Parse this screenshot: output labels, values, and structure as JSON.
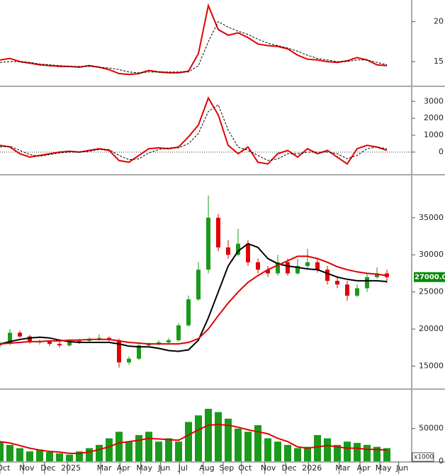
{
  "chart_data": [
    {
      "type": "line",
      "x": [
        0,
        2,
        4,
        6,
        8,
        10,
        12,
        14,
        16,
        18,
        20,
        22,
        24,
        26,
        28,
        30,
        32,
        34,
        36,
        38,
        40,
        42,
        44,
        46,
        48,
        50,
        52,
        54,
        56,
        58,
        60,
        62,
        64,
        66,
        68,
        70,
        72,
        74,
        76,
        78
      ],
      "series": [
        {
          "color": "#e00000",
          "dash": false,
          "values": [
            15.2,
            15.4,
            15.0,
            14.8,
            14.6,
            14.5,
            14.4,
            14.4,
            14.3,
            14.5,
            14.3,
            14.0,
            13.5,
            13.4,
            13.5,
            13.9,
            13.7,
            13.6,
            13.6,
            13.8,
            16.0,
            22.0,
            19.0,
            18.3,
            18.6,
            18.0,
            17.2,
            17.0,
            16.9,
            16.6,
            15.8,
            15.3,
            15.2,
            15.0,
            14.9,
            15.1,
            15.5,
            15.2,
            14.6,
            14.5
          ]
        },
        {
          "color": "#000000",
          "dash": true,
          "values": [
            14.9,
            15.0,
            15.0,
            14.9,
            14.7,
            14.6,
            14.5,
            14.4,
            14.4,
            14.4,
            14.3,
            14.2,
            14.0,
            13.7,
            13.6,
            13.7,
            13.7,
            13.7,
            13.7,
            13.7,
            14.5,
            17.5,
            20.0,
            19.3,
            18.8,
            18.4,
            17.8,
            17.3,
            17.0,
            16.7,
            16.3,
            15.8,
            15.4,
            15.2,
            15.0,
            15.0,
            15.2,
            15.2,
            14.9,
            14.6
          ]
        }
      ],
      "ylim": [
        12,
        22.7
      ],
      "yticks": [
        15,
        20
      ]
    },
    {
      "type": "line",
      "x": [
        0,
        2,
        4,
        6,
        8,
        10,
        12,
        14,
        16,
        18,
        20,
        22,
        24,
        26,
        28,
        30,
        32,
        34,
        36,
        38,
        40,
        42,
        44,
        46,
        48,
        50,
        52,
        54,
        56,
        58,
        60,
        62,
        64,
        66,
        68,
        70,
        72,
        74,
        76,
        78
      ],
      "series": [
        {
          "color": "#e00000",
          "dash": false,
          "values": [
            400,
            300,
            -100,
            -300,
            -200,
            -100,
            0,
            50,
            0,
            100,
            200,
            100,
            -500,
            -600,
            -200,
            200,
            250,
            200,
            300,
            900,
            1600,
            3200,
            2200,
            400,
            -100,
            300,
            -600,
            -700,
            -100,
            100,
            -300,
            200,
            -100,
            100,
            -300,
            -700,
            200,
            400,
            300,
            100
          ]
        },
        {
          "color": "#000000",
          "dash": true,
          "values": [
            300,
            350,
            100,
            -150,
            -250,
            -150,
            -50,
            0,
            0,
            50,
            150,
            150,
            -200,
            -450,
            -400,
            -50,
            150,
            250,
            250,
            500,
            1100,
            2400,
            2800,
            1300,
            300,
            100,
            -200,
            -500,
            -400,
            -100,
            -100,
            0,
            0,
            0,
            -100,
            -400,
            -200,
            200,
            300,
            200
          ]
        }
      ],
      "ylim": [
        -1300,
        3850
      ],
      "yticks": [
        0,
        1000,
        2000,
        3000
      ],
      "zero_line": true
    },
    {
      "type": "candlestick",
      "x": [
        0,
        2,
        4,
        6,
        8,
        10,
        12,
        14,
        16,
        18,
        20,
        22,
        24,
        26,
        28,
        30,
        32,
        34,
        36,
        38,
        40,
        42,
        44,
        46,
        48,
        50,
        52,
        54,
        56,
        58,
        60,
        62,
        64,
        66,
        68,
        70,
        72,
        74,
        76,
        78
      ],
      "open": [
        17800,
        18000,
        19500,
        19000,
        18200,
        18300,
        18000,
        17800,
        18200,
        18400,
        18600,
        18800,
        18500,
        15500,
        16000,
        17800,
        18000,
        18200,
        18500,
        20500,
        24000,
        28000,
        35000,
        31000,
        30000,
        31500,
        29000,
        28000,
        27500,
        29000,
        27500,
        28500,
        29000,
        28000,
        26500,
        26000,
        24500,
        25500,
        27000,
        27500
      ],
      "high": [
        18300,
        20000,
        19800,
        19200,
        18600,
        18500,
        18300,
        18400,
        18700,
        18900,
        19300,
        19000,
        18700,
        16300,
        18000,
        18200,
        18500,
        18800,
        20800,
        24500,
        29000,
        38000,
        35500,
        32000,
        33500,
        32000,
        29500,
        28500,
        30000,
        29500,
        29500,
        30800,
        29500,
        28500,
        27000,
        26500,
        26000,
        27500,
        28300,
        28000
      ],
      "low": [
        17500,
        17800,
        18800,
        18000,
        17900,
        17700,
        17500,
        17600,
        18000,
        18200,
        18400,
        18300,
        14800,
        15200,
        15800,
        17600,
        17800,
        18000,
        18300,
        20300,
        23800,
        27500,
        30500,
        29500,
        29800,
        28500,
        27500,
        27000,
        27200,
        27200,
        27300,
        28200,
        27600,
        26000,
        25500,
        23800,
        24300,
        25000,
        26800,
        26200
      ],
      "close": [
        18000,
        19500,
        19000,
        18200,
        18300,
        18000,
        17800,
        18200,
        18400,
        18600,
        18800,
        18500,
        15500,
        16000,
        17800,
        18000,
        18200,
        18500,
        20500,
        24000,
        28000,
        35000,
        31000,
        30000,
        31500,
        29000,
        28000,
        27500,
        29000,
        27500,
        28500,
        29000,
        28000,
        26500,
        26000,
        24500,
        25500,
        27000,
        27500,
        27000
      ],
      "up_color": "#1a9a1a",
      "down_color": "#e00000",
      "series": [
        {
          "color": "#000000",
          "values": [
            18000,
            18300,
            18600,
            18800,
            18900,
            18800,
            18500,
            18300,
            18200,
            18200,
            18200,
            18200,
            18000,
            17700,
            17600,
            17600,
            17400,
            17100,
            17000,
            17200,
            18500,
            21500,
            25000,
            28500,
            30500,
            31500,
            31000,
            29500,
            28800,
            28500,
            28300,
            28100,
            28000,
            27500,
            27000,
            26700,
            26500,
            26500,
            26500,
            26400
          ]
        },
        {
          "color": "#e00000",
          "values": [
            18000,
            18100,
            18200,
            18300,
            18300,
            18400,
            18400,
            18500,
            18500,
            18600,
            18600,
            18600,
            18400,
            18200,
            18100,
            18000,
            18000,
            18000,
            18000,
            18200,
            18700,
            20000,
            21800,
            23500,
            25000,
            26300,
            27200,
            28000,
            28600,
            29200,
            29800,
            29800,
            29500,
            29000,
            28400,
            28000,
            27700,
            27500,
            27400,
            27200
          ]
        }
      ],
      "price_tag": {
        "value": 27000,
        "label": "27000.00"
      },
      "ylim": [
        12000,
        40700
      ],
      "yticks": [
        15000,
        20000,
        25000,
        30000,
        35000
      ]
    },
    {
      "type": "bar",
      "x": [
        0,
        2,
        4,
        6,
        8,
        10,
        12,
        14,
        16,
        18,
        20,
        22,
        24,
        26,
        28,
        30,
        32,
        34,
        36,
        38,
        40,
        42,
        44,
        46,
        48,
        50,
        52,
        54,
        56,
        58,
        60,
        62,
        64,
        66,
        68,
        70,
        72,
        74,
        76,
        78
      ],
      "values": [
        30000,
        25000,
        20000,
        15000,
        18000,
        14000,
        12000,
        10000,
        15000,
        20000,
        25000,
        35000,
        45000,
        30000,
        40000,
        45000,
        30000,
        35000,
        30000,
        60000,
        70000,
        80000,
        75000,
        65000,
        50000,
        45000,
        55000,
        35000,
        30000,
        25000,
        20000,
        22000,
        40000,
        35000,
        25000,
        30000,
        28000,
        25000,
        22000,
        20000
      ],
      "color": "#1a9a1a",
      "series": [
        {
          "color": "#e00000",
          "values": [
            30000,
            28000,
            24000,
            20000,
            17000,
            15000,
            14000,
            12000,
            12000,
            14000,
            18000,
            22000,
            28000,
            30000,
            32000,
            35000,
            34000,
            33000,
            32000,
            40000,
            48000,
            55000,
            56000,
            55000,
            52000,
            48000,
            45000,
            42000,
            35000,
            30000,
            22000,
            20000,
            22000,
            24000,
            22000,
            20000,
            20000,
            18000,
            18000,
            17000
          ]
        }
      ],
      "unit_label": "x1000",
      "ylim": [
        0,
        109000
      ],
      "yticks": [
        0,
        50000
      ],
      "xlim": [
        0,
        83
      ],
      "xticks": [
        {
          "value": 0.7,
          "label": "Oct"
        },
        {
          "value": 5.4,
          "label": "Nov"
        },
        {
          "value": 9.7,
          "label": "Dec"
        },
        {
          "value": 14.3,
          "label": "2025"
        },
        {
          "value": 21,
          "label": "Mar"
        },
        {
          "value": 24.9,
          "label": "Apr"
        },
        {
          "value": 29.1,
          "label": "May"
        },
        {
          "value": 33.1,
          "label": "Jun"
        },
        {
          "value": 36.9,
          "label": "Jul"
        },
        {
          "value": 41.7,
          "label": "Aug"
        },
        {
          "value": 45.7,
          "label": "Sep"
        },
        {
          "value": 49.4,
          "label": "Oct"
        },
        {
          "value": 54.1,
          "label": "Nov"
        },
        {
          "value": 58.3,
          "label": "Dec"
        },
        {
          "value": 62.9,
          "label": "2026"
        },
        {
          "value": 69.1,
          "label": "Mar"
        },
        {
          "value": 73.3,
          "label": "Apr"
        },
        {
          "value": 77.3,
          "label": "May"
        },
        {
          "value": 81.1,
          "label": "Jun"
        }
      ]
    }
  ]
}
